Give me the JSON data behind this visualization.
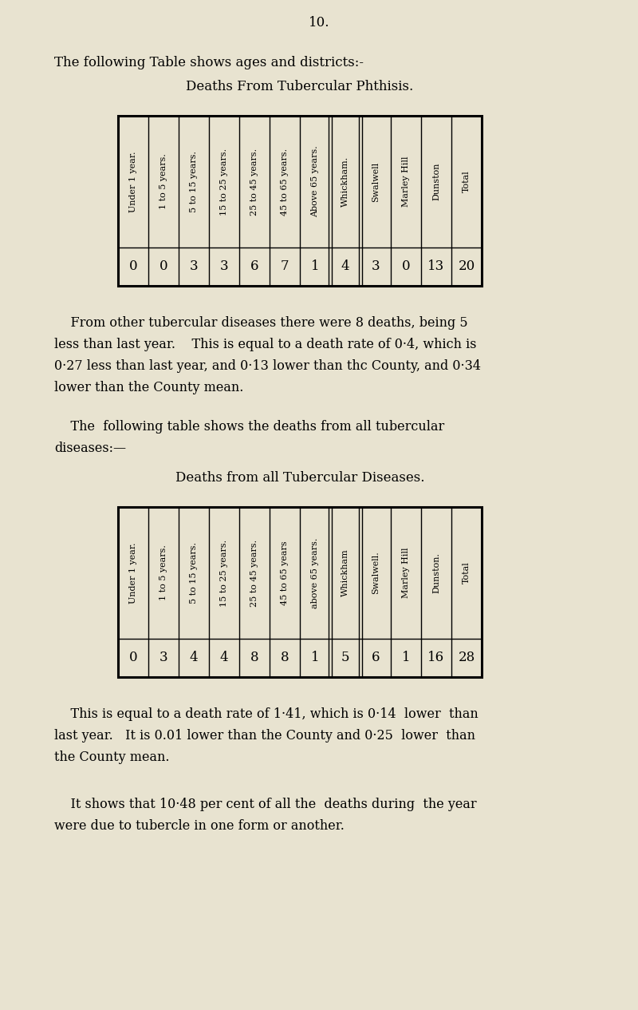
{
  "bg_color": "#e8e3d0",
  "page_number": "10.",
  "intro_text": "The following Table shows ages and districts:-",
  "table1_title": "Deaths From Tubercular Phthisis.",
  "table1_headers": [
    "Under 1 year.",
    "1 to 5 years.",
    "5 to 15 years.",
    "15 to 25 years.",
    "25 to 45 years.",
    "45 to 65 years.",
    "Above 65 years.",
    "Whickham.",
    "Swalwell",
    "Marley Hill",
    "Dunston",
    "Total"
  ],
  "table1_values": [
    "0",
    "0",
    "3",
    "3",
    "6",
    "7",
    "1",
    "4",
    "3",
    "0",
    "13",
    "20"
  ],
  "table1_double_line_after": [
    7,
    8
  ],
  "table2_title": "Deaths from all Tubercular Diseases.",
  "table2_headers": [
    "Under 1 year.",
    "1 to 5 years.",
    "5 to 15 years.",
    "15 to 25 years.",
    "25 to 45 years.",
    "45 to 65 years",
    "above 65 years.",
    "Whickham",
    "Swalwell.",
    "Marley Hill",
    "Dunston.",
    "Total"
  ],
  "table2_values": [
    "0",
    "3",
    "4",
    "4",
    "8",
    "8",
    "1",
    "5",
    "6",
    "1",
    "16",
    "28"
  ],
  "table2_double_line_after": [
    7,
    8
  ],
  "para1_indent": "    From other tubercular diseases there were 8 deaths, being 5",
  "para1_lines": [
    "less than last year.    This is equal to a death rate of 0·4, which is",
    "0·27 less than last year, and 0·13 lower than thc County, and 0·34",
    "lower than the County mean."
  ],
  "para2_indent": "    The  following table shows the deaths from all tubercular",
  "para2_lines": [
    "diseases:—"
  ],
  "para3_indent": "    This is equal to a death rate of 1·41, which is 0·14  lower  than",
  "para3_lines": [
    "last year.   It is 0.01 lower than the County and 0·25  lower  than",
    "the County mean."
  ],
  "para4_indent": "    It shows that 10·48 per cent of all the  deaths during  the year",
  "para4_lines": [
    "were due to tubercle in one form or another."
  ]
}
